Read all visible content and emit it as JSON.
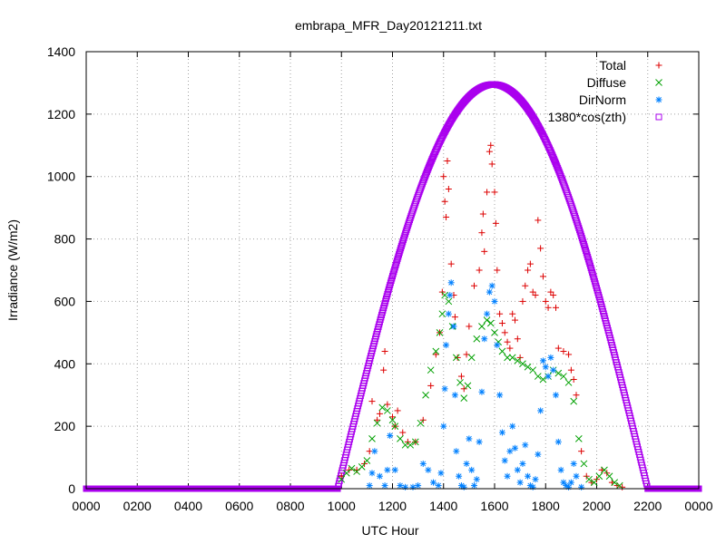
{
  "chart_data": {
    "type": "scatter",
    "title": "embrapa_MFR_Day20121211.txt",
    "xlabel": "UTC Hour",
    "ylabel": "Irradiance (W/m2)",
    "xlim": [
      0,
      24
    ],
    "ylim": [
      0,
      1400
    ],
    "x_ticks": [
      {
        "value": 0,
        "label": "0000"
      },
      {
        "value": 2,
        "label": "0200"
      },
      {
        "value": 4,
        "label": "0400"
      },
      {
        "value": 6,
        "label": "0600"
      },
      {
        "value": 8,
        "label": "0800"
      },
      {
        "value": 10,
        "label": "1000"
      },
      {
        "value": 12,
        "label": "1200"
      },
      {
        "value": 14,
        "label": "1400"
      },
      {
        "value": 16,
        "label": "1600"
      },
      {
        "value": 18,
        "label": "1800"
      },
      {
        "value": 20,
        "label": "2000"
      },
      {
        "value": 22,
        "label": "2200"
      },
      {
        "value": 24,
        "label": "0000"
      }
    ],
    "y_ticks": [
      0,
      200,
      400,
      600,
      800,
      1000,
      1200,
      1400
    ],
    "grid": true,
    "legend_position": "top-right",
    "series": [
      {
        "name": "Total",
        "marker": "+",
        "color": "#dd0000",
        "points": [
          [
            10.0,
            40
          ],
          [
            10.3,
            60
          ],
          [
            10.6,
            60
          ],
          [
            10.9,
            80
          ],
          [
            11.1,
            120
          ],
          [
            11.2,
            280
          ],
          [
            11.4,
            220
          ],
          [
            11.5,
            240
          ],
          [
            11.65,
            380
          ],
          [
            11.7,
            440
          ],
          [
            11.8,
            270
          ],
          [
            12.0,
            230
          ],
          [
            12.1,
            200
          ],
          [
            12.2,
            250
          ],
          [
            12.4,
            180
          ],
          [
            12.6,
            150
          ],
          [
            12.9,
            150
          ],
          [
            13.2,
            220
          ],
          [
            13.5,
            330
          ],
          [
            13.7,
            430
          ],
          [
            13.85,
            500
          ],
          [
            13.95,
            630
          ],
          [
            14.0,
            1000
          ],
          [
            14.05,
            920
          ],
          [
            14.1,
            870
          ],
          [
            14.15,
            1050
          ],
          [
            14.2,
            960
          ],
          [
            14.3,
            720
          ],
          [
            14.4,
            620
          ],
          [
            14.45,
            550
          ],
          [
            14.55,
            420
          ],
          [
            14.7,
            360
          ],
          [
            14.8,
            320
          ],
          [
            14.9,
            430
          ],
          [
            15.0,
            520
          ],
          [
            15.2,
            650
          ],
          [
            15.4,
            700
          ],
          [
            15.5,
            820
          ],
          [
            15.55,
            880
          ],
          [
            15.6,
            760
          ],
          [
            15.7,
            950
          ],
          [
            15.8,
            1080
          ],
          [
            15.85,
            1100
          ],
          [
            15.9,
            1040
          ],
          [
            16.0,
            950
          ],
          [
            16.05,
            850
          ],
          [
            16.1,
            700
          ],
          [
            16.2,
            560
          ],
          [
            16.3,
            530
          ],
          [
            16.4,
            500
          ],
          [
            16.5,
            470
          ],
          [
            16.6,
            450
          ],
          [
            16.7,
            560
          ],
          [
            16.8,
            540
          ],
          [
            16.9,
            480
          ],
          [
            17.0,
            420
          ],
          [
            17.1,
            600
          ],
          [
            17.2,
            650
          ],
          [
            17.3,
            700
          ],
          [
            17.4,
            720
          ],
          [
            17.5,
            630
          ],
          [
            17.6,
            620
          ],
          [
            17.7,
            860
          ],
          [
            17.8,
            770
          ],
          [
            17.9,
            680
          ],
          [
            18.0,
            600
          ],
          [
            18.1,
            580
          ],
          [
            18.2,
            630
          ],
          [
            18.3,
            620
          ],
          [
            18.4,
            580
          ],
          [
            18.5,
            450
          ],
          [
            18.7,
            440
          ],
          [
            18.9,
            430
          ],
          [
            19.0,
            380
          ],
          [
            19.1,
            350
          ],
          [
            19.2,
            300
          ],
          [
            19.4,
            120
          ],
          [
            19.6,
            40
          ],
          [
            19.8,
            20
          ],
          [
            20.0,
            30
          ],
          [
            20.2,
            60
          ],
          [
            20.4,
            50
          ],
          [
            20.6,
            20
          ],
          [
            20.8,
            10
          ],
          [
            21.0,
            5
          ]
        ]
      },
      {
        "name": "Diffuse",
        "marker": "x",
        "color": "#00a000",
        "points": [
          [
            10.0,
            30
          ],
          [
            10.2,
            50
          ],
          [
            10.4,
            65
          ],
          [
            10.6,
            55
          ],
          [
            10.8,
            70
          ],
          [
            11.0,
            90
          ],
          [
            11.2,
            160
          ],
          [
            11.4,
            210
          ],
          [
            11.6,
            260
          ],
          [
            11.8,
            250
          ],
          [
            12.0,
            220
          ],
          [
            12.1,
            200
          ],
          [
            12.3,
            160
          ],
          [
            12.5,
            140
          ],
          [
            12.7,
            140
          ],
          [
            12.9,
            150
          ],
          [
            13.1,
            210
          ],
          [
            13.3,
            300
          ],
          [
            13.5,
            380
          ],
          [
            13.7,
            440
          ],
          [
            13.85,
            500
          ],
          [
            13.95,
            560
          ],
          [
            14.05,
            620
          ],
          [
            14.2,
            600
          ],
          [
            14.35,
            520
          ],
          [
            14.5,
            420
          ],
          [
            14.65,
            340
          ],
          [
            14.8,
            290
          ],
          [
            14.95,
            330
          ],
          [
            15.1,
            420
          ],
          [
            15.3,
            480
          ],
          [
            15.5,
            520
          ],
          [
            15.7,
            540
          ],
          [
            15.85,
            530
          ],
          [
            16.0,
            500
          ],
          [
            16.15,
            470
          ],
          [
            16.3,
            440
          ],
          [
            16.5,
            420
          ],
          [
            16.7,
            420
          ],
          [
            16.9,
            410
          ],
          [
            17.1,
            400
          ],
          [
            17.3,
            390
          ],
          [
            17.5,
            380
          ],
          [
            17.7,
            360
          ],
          [
            17.9,
            350
          ],
          [
            18.1,
            360
          ],
          [
            18.3,
            380
          ],
          [
            18.5,
            370
          ],
          [
            18.7,
            360
          ],
          [
            18.9,
            340
          ],
          [
            19.1,
            280
          ],
          [
            19.3,
            160
          ],
          [
            19.5,
            80
          ],
          [
            19.7,
            30
          ],
          [
            19.9,
            20
          ],
          [
            20.1,
            40
          ],
          [
            20.3,
            60
          ],
          [
            20.5,
            40
          ],
          [
            20.7,
            20
          ],
          [
            20.9,
            10
          ]
        ]
      },
      {
        "name": "DirNorm",
        "marker": "*",
        "color": "#0080ff",
        "points": [
          [
            11.1,
            10
          ],
          [
            11.2,
            50
          ],
          [
            11.3,
            120
          ],
          [
            11.5,
            40
          ],
          [
            11.7,
            10
          ],
          [
            11.8,
            60
          ],
          [
            11.9,
            170
          ],
          [
            12.1,
            60
          ],
          [
            12.3,
            10
          ],
          [
            12.5,
            5
          ],
          [
            12.8,
            5
          ],
          [
            13.0,
            10
          ],
          [
            13.2,
            80
          ],
          [
            13.4,
            60
          ],
          [
            13.6,
            20
          ],
          [
            13.8,
            10
          ],
          [
            13.9,
            50
          ],
          [
            14.0,
            200
          ],
          [
            14.05,
            320
          ],
          [
            14.1,
            460
          ],
          [
            14.2,
            560
          ],
          [
            14.25,
            620
          ],
          [
            14.3,
            660
          ],
          [
            14.4,
            520
          ],
          [
            14.45,
            300
          ],
          [
            14.5,
            120
          ],
          [
            14.6,
            40
          ],
          [
            14.7,
            10
          ],
          [
            14.8,
            5
          ],
          [
            14.9,
            80
          ],
          [
            15.0,
            160
          ],
          [
            15.1,
            60
          ],
          [
            15.2,
            10
          ],
          [
            15.3,
            30
          ],
          [
            15.4,
            150
          ],
          [
            15.5,
            310
          ],
          [
            15.6,
            480
          ],
          [
            15.7,
            560
          ],
          [
            15.8,
            630
          ],
          [
            15.9,
            650
          ],
          [
            16.0,
            600
          ],
          [
            16.1,
            460
          ],
          [
            16.2,
            300
          ],
          [
            16.3,
            180
          ],
          [
            16.4,
            90
          ],
          [
            16.5,
            40
          ],
          [
            16.6,
            120
          ],
          [
            16.7,
            200
          ],
          [
            16.8,
            130
          ],
          [
            16.9,
            60
          ],
          [
            17.0,
            20
          ],
          [
            17.1,
            80
          ],
          [
            17.2,
            140
          ],
          [
            17.3,
            40
          ],
          [
            17.4,
            10
          ],
          [
            17.5,
            5
          ],
          [
            17.6,
            30
          ],
          [
            17.7,
            110
          ],
          [
            17.8,
            250
          ],
          [
            17.9,
            410
          ],
          [
            18.0,
            390
          ],
          [
            18.1,
            360
          ],
          [
            18.2,
            420
          ],
          [
            18.3,
            380
          ],
          [
            18.4,
            300
          ],
          [
            18.5,
            150
          ],
          [
            18.6,
            60
          ],
          [
            18.7,
            20
          ],
          [
            18.8,
            10
          ],
          [
            18.9,
            5
          ],
          [
            19.0,
            20
          ],
          [
            19.1,
            80
          ],
          [
            19.2,
            40
          ],
          [
            19.4,
            5
          ]
        ]
      },
      {
        "name": "1380*cos(zth)",
        "marker": "square",
        "color": "#aa00ee",
        "curve": {
          "sunrise": 9.85,
          "sunset": 22.0,
          "peak": 1295,
          "peak_x": 15.95,
          "night_value": 0
        }
      }
    ]
  }
}
